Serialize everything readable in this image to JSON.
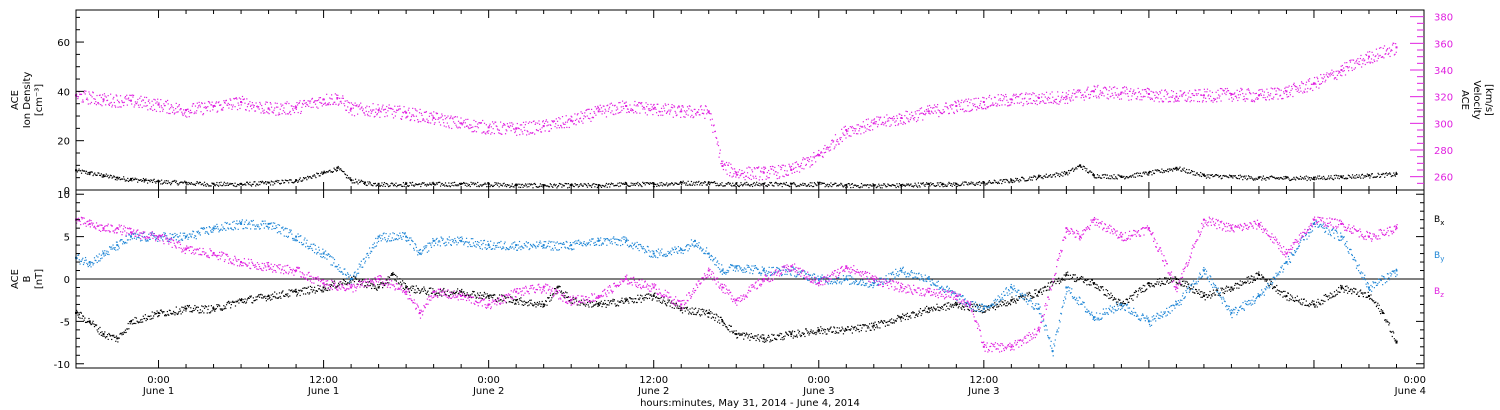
{
  "colors": {
    "density": "#000000",
    "velocity": "#e020e0",
    "bx": "#000000",
    "by": "#1f86d6",
    "bz": "#e020e0"
  },
  "chart_data": [
    {
      "type": "scatter",
      "panel": "top",
      "ylabel_left": [
        "ACE",
        "Ion Density",
        "[cm⁻³]"
      ],
      "ylabel_right": [
        "ACE",
        "Velocity",
        "[km/s]"
      ],
      "ylim_left": [
        0,
        73
      ],
      "ylim_right": [
        250,
        385
      ],
      "yticks_left": [
        0,
        20,
        40,
        60
      ],
      "yticks_right": [
        260,
        280,
        300,
        320,
        340,
        360,
        380
      ],
      "xlim_hours": [
        0,
        98
      ],
      "series": [
        {
          "axis": "left",
          "color": "#000000",
          "x": [
            0,
            1,
            2,
            3,
            4,
            5,
            6,
            8,
            10,
            12,
            14,
            16,
            18,
            19,
            20,
            21,
            22,
            24,
            26,
            28,
            30,
            32,
            34,
            36,
            38,
            40,
            42,
            44,
            46,
            48,
            50,
            52,
            54,
            56,
            58,
            60,
            62,
            63,
            64,
            66,
            68,
            70,
            72,
            73,
            74,
            76,
            78,
            80,
            82,
            84,
            86,
            88,
            90,
            92,
            94,
            96
          ],
          "y": [
            8,
            7,
            6,
            5,
            4.5,
            4,
            3.5,
            3,
            2.5,
            2.5,
            3,
            4,
            7,
            9,
            4,
            3,
            2.5,
            2.5,
            2.5,
            2.5,
            2.5,
            2,
            2,
            2,
            2,
            2.5,
            2.5,
            3,
            3,
            2.5,
            2.5,
            2.5,
            2.5,
            2,
            2,
            2,
            2.5,
            2.5,
            2.5,
            3,
            4,
            5.5,
            7,
            10,
            6,
            5.5,
            7,
            9,
            6,
            5.5,
            5,
            5,
            5,
            5.5,
            6,
            6.5
          ]
        },
        {
          "axis": "right",
          "color": "#e020e0",
          "x": [
            0,
            2,
            4,
            6,
            8,
            10,
            12,
            14,
            16,
            18,
            19,
            20,
            22,
            24,
            26,
            28,
            30,
            32,
            34,
            36,
            38,
            40,
            42,
            44,
            46,
            47,
            48,
            50,
            52,
            54,
            56,
            58,
            60,
            62,
            64,
            66,
            68,
            70,
            72,
            74,
            76,
            78,
            80,
            82,
            84,
            86,
            88,
            90,
            92,
            94,
            96
          ],
          "y": [
            321,
            318,
            317,
            314,
            310,
            313,
            316,
            311,
            312,
            318,
            319,
            311,
            310,
            308,
            304,
            300,
            297,
            296,
            298,
            302,
            309,
            313,
            311,
            309,
            309,
            268,
            263,
            263,
            265,
            276,
            295,
            300,
            304,
            309,
            313,
            316,
            318,
            319,
            320,
            324,
            323,
            322,
            320,
            321,
            322,
            321,
            324,
            330,
            340,
            350,
            357
          ]
        }
      ]
    },
    {
      "type": "scatter",
      "panel": "bottom",
      "ylabel_left": [
        "ACE",
        "B",
        "[nT]"
      ],
      "ylim": [
        -10.5,
        10.5
      ],
      "yticks": [
        -10,
        -5,
        0,
        5,
        10
      ],
      "xlim_hours": [
        0,
        98
      ],
      "legend": [
        {
          "label": "B",
          "sub": "x",
          "color": "#000000"
        },
        {
          "label": "B",
          "sub": "y",
          "color": "#1f86d6"
        },
        {
          "label": "B",
          "sub": "z",
          "color": "#e020e0"
        }
      ],
      "series": [
        {
          "name": "Bx",
          "color": "#000000",
          "x": [
            0,
            1,
            2,
            3,
            4,
            6,
            8,
            10,
            12,
            14,
            16,
            18,
            20,
            22,
            23,
            24,
            26,
            28,
            30,
            32,
            34,
            35,
            36,
            38,
            40,
            42,
            44,
            46,
            47,
            48,
            50,
            52,
            54,
            56,
            58,
            60,
            62,
            64,
            66,
            68,
            70,
            72,
            74,
            76,
            78,
            80,
            82,
            84,
            86,
            88,
            90,
            92,
            94,
            95,
            96
          ],
          "y": [
            -4,
            -5,
            -6.5,
            -7,
            -5,
            -4,
            -3.5,
            -3.5,
            -2.5,
            -2,
            -1.5,
            -1,
            0,
            -1,
            0.5,
            -1,
            -1.5,
            -1.5,
            -2,
            -2.5,
            -3,
            -1,
            -2.5,
            -3,
            -2.5,
            -2,
            -3.5,
            -4,
            -5,
            -6.5,
            -7,
            -6.5,
            -6,
            -6,
            -5.5,
            -4.5,
            -3.5,
            -3,
            -3.5,
            -2.5,
            -1.5,
            0.5,
            -0.5,
            -3,
            -0.5,
            0,
            -2,
            -1,
            0.5,
            -2,
            -3,
            -1,
            -2,
            -4,
            -7.5
          ]
        },
        {
          "name": "By",
          "color": "#1f86d6",
          "x": [
            0,
            1,
            2,
            3,
            4,
            6,
            8,
            10,
            12,
            14,
            16,
            18,
            20,
            22,
            24,
            25,
            26,
            28,
            30,
            32,
            34,
            36,
            38,
            40,
            42,
            44,
            45,
            46,
            47,
            48,
            50,
            52,
            54,
            56,
            58,
            60,
            62,
            64,
            65,
            66,
            68,
            70,
            71,
            72,
            74,
            76,
            78,
            80,
            82,
            84,
            86,
            88,
            90,
            92,
            94,
            96
          ],
          "y": [
            2.5,
            2,
            3,
            4,
            5,
            5,
            5,
            6,
            6.5,
            6.5,
            5,
            3,
            0,
            5,
            5,
            3,
            4.5,
            4.5,
            4,
            4,
            4,
            4,
            4.5,
            4.5,
            3,
            3.5,
            4.5,
            3,
            1,
            1.5,
            1,
            1,
            0,
            0,
            -0.5,
            1,
            0,
            -2,
            -3,
            -3.5,
            -1,
            -3.5,
            -8.5,
            -1,
            -4.5,
            -3,
            -5,
            -3,
            1,
            -4,
            -2,
            2,
            6.5,
            5,
            -1,
            1
          ]
        },
        {
          "name": "Bz",
          "color": "#e020e0",
          "x": [
            0,
            1,
            2,
            3,
            4,
            6,
            8,
            10,
            12,
            14,
            16,
            18,
            20,
            22,
            24,
            25,
            26,
            28,
            30,
            32,
            34,
            36,
            38,
            40,
            42,
            44,
            46,
            47,
            48,
            50,
            52,
            54,
            56,
            58,
            60,
            62,
            64,
            65,
            66,
            68,
            70,
            72,
            73,
            74,
            76,
            78,
            80,
            82,
            84,
            86,
            88,
            90,
            92,
            94,
            96
          ],
          "y": [
            7,
            6.5,
            6,
            6,
            5.5,
            5,
            3.5,
            3,
            2,
            1.5,
            1,
            -0.5,
            -1,
            0,
            -1.5,
            -4,
            -1.5,
            -2,
            -3,
            -1.5,
            -1,
            -2.5,
            -2,
            0,
            -1,
            -3,
            1,
            -1,
            -2.5,
            0,
            1.5,
            -0.5,
            1.5,
            0,
            -1,
            -1.5,
            -2,
            -3,
            -8,
            -8,
            -6,
            6,
            5,
            7,
            5,
            6,
            -1,
            7,
            6,
            6.5,
            3,
            7,
            6.5,
            5,
            6
          ]
        }
      ]
    }
  ],
  "x_axis": {
    "ticks": [
      {
        "time": "0:00",
        "date": "June 1"
      },
      {
        "time": "12:00",
        "date": "June 1"
      },
      {
        "time": "0:00",
        "date": "June 2"
      },
      {
        "time": "12:00",
        "date": "June 2"
      },
      {
        "time": "0:00",
        "date": "June 3"
      },
      {
        "time": "12:00",
        "date": "June 3"
      },
      {
        "time": "0:00",
        "date": "June 4"
      }
    ],
    "tick_hours": [
      0,
      12,
      24,
      36,
      48,
      60,
      72
    ],
    "title": "hours:minutes, May 31, 2014 - June  4, 2014"
  }
}
